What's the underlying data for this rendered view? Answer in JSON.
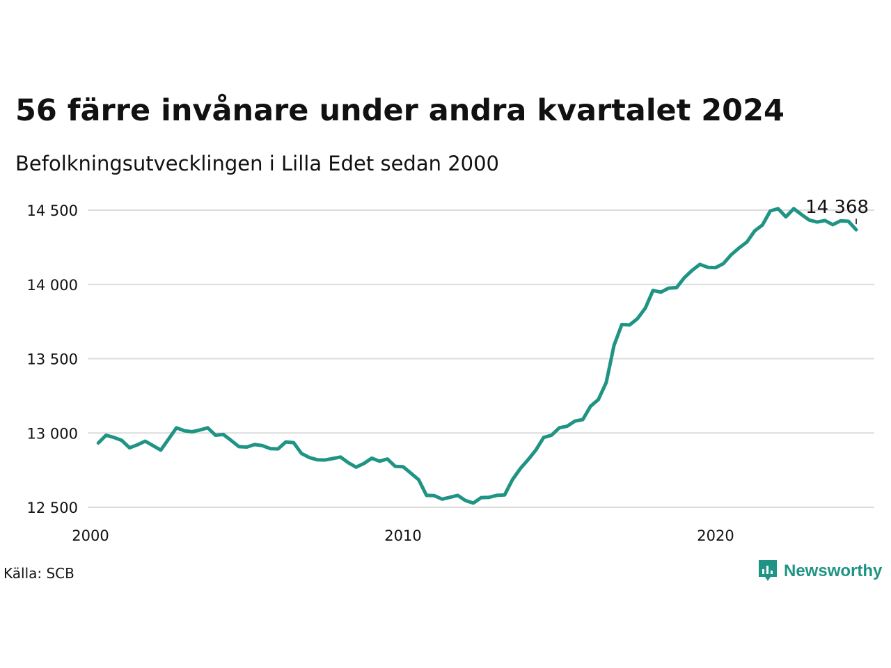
{
  "title": "56 färre invånare under andra kvartalet 2024",
  "subtitle": "Befolkningsutvecklingen i Lilla Edet sedan 2000",
  "source": "Källa: SCB",
  "brand": {
    "name": "Newsworthy",
    "icon": "newsworthy-logo-icon",
    "color": "#1f9484"
  },
  "chart_data": {
    "type": "line",
    "line_color": "#1f9484",
    "grid": true,
    "x_ticks": [
      2000,
      2010,
      2020
    ],
    "y_ticks": [
      12500,
      13000,
      13500,
      14000,
      14500
    ],
    "y_tick_labels": [
      "12 500",
      "13 000",
      "13 500",
      "14 000",
      "14 500"
    ],
    "x_tick_labels": [
      "2000",
      "2010",
      "2020"
    ],
    "xlim": [
      2000,
      2025
    ],
    "ylim": [
      12500,
      14500
    ],
    "end_label": "14 368",
    "series": [
      {
        "x": [
          2000.25,
          2000.5,
          2000.75,
          2001.0,
          2001.25,
          2001.5,
          2001.75,
          2002.0,
          2002.25,
          2002.5,
          2002.75,
          2003.0,
          2003.25,
          2003.5,
          2003.75,
          2004.0,
          2004.25,
          2004.5,
          2004.75,
          2005.0,
          2005.25,
          2005.5,
          2005.75,
          2006.0,
          2006.25,
          2006.5,
          2006.75,
          2007.0,
          2007.25,
          2007.5,
          2007.75,
          2008.0,
          2008.25,
          2008.5,
          2008.75,
          2009.0,
          2009.25,
          2009.5,
          2009.75,
          2010.0,
          2010.25,
          2010.5,
          2010.75,
          2011.0,
          2011.25,
          2011.5,
          2011.75,
          2012.0,
          2012.25,
          2012.5,
          2012.75,
          2013.0,
          2013.25,
          2013.5,
          2013.75,
          2014.0,
          2014.25,
          2014.5,
          2014.75,
          2015.0,
          2015.25,
          2015.5,
          2015.75,
          2016.0,
          2016.25,
          2016.5,
          2016.75,
          2017.0,
          2017.25,
          2017.5,
          2017.75,
          2018.0,
          2018.25,
          2018.5,
          2018.75,
          2019.0,
          2019.25,
          2019.5,
          2019.75,
          2020.0,
          2020.25,
          2020.5,
          2020.75,
          2021.0,
          2021.25,
          2021.5,
          2021.75,
          2022.0,
          2022.25,
          2022.5,
          2022.75,
          2023.0,
          2023.25,
          2023.5,
          2023.75,
          2024.0,
          2024.25,
          2024.5
        ],
        "values": [
          12933,
          12985,
          12970,
          12950,
          12900,
          12920,
          12945,
          12915,
          12885,
          12960,
          13035,
          13015,
          13008,
          13020,
          13035,
          12985,
          12990,
          12950,
          12908,
          12905,
          12922,
          12915,
          12895,
          12893,
          12940,
          12935,
          12862,
          12835,
          12820,
          12818,
          12828,
          12838,
          12800,
          12770,
          12795,
          12830,
          12810,
          12825,
          12775,
          12773,
          12730,
          12685,
          12580,
          12578,
          12555,
          12567,
          12580,
          12545,
          12528,
          12565,
          12567,
          12580,
          12583,
          12685,
          12760,
          12820,
          12885,
          12970,
          12985,
          13035,
          13045,
          13080,
          13090,
          13180,
          13225,
          13340,
          13590,
          13730,
          13727,
          13770,
          13840,
          13960,
          13948,
          13975,
          13978,
          14045,
          14095,
          14135,
          14115,
          14113,
          14140,
          14200,
          14245,
          14285,
          14360,
          14400,
          14495,
          14510,
          14455,
          14510,
          14470,
          14433,
          14420,
          14430,
          14402,
          14428,
          14425,
          14368
        ]
      }
    ]
  }
}
